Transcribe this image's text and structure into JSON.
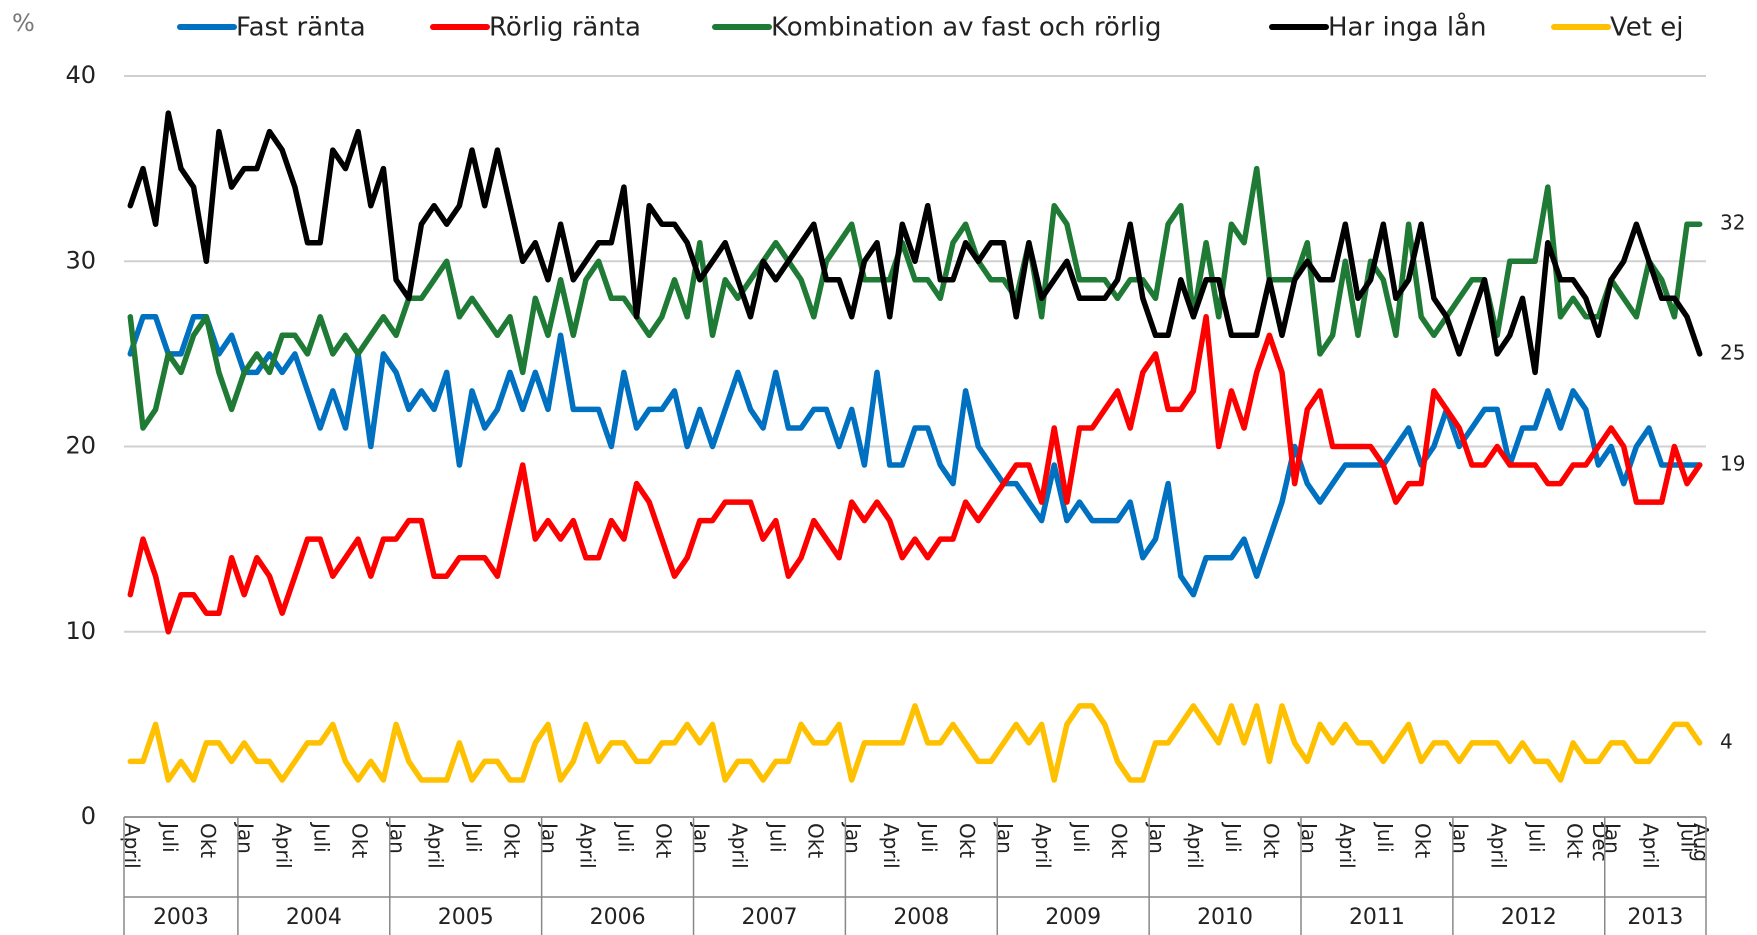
{
  "chart_data": {
    "type": "line",
    "y_unit_label": "%",
    "ylim": [
      0,
      40
    ],
    "yticks": [
      0,
      10,
      20,
      30,
      40
    ],
    "grid": true,
    "legend": "top",
    "categories": [
      "April",
      null,
      null,
      "Juli",
      null,
      null,
      "Okt",
      null,
      null,
      "Jan",
      null,
      null,
      "April",
      null,
      null,
      "Juli",
      null,
      null,
      "Okt",
      null,
      null,
      "Jan",
      null,
      null,
      "April",
      null,
      null,
      "Juli",
      null,
      null,
      "Okt",
      null,
      null,
      "Jan",
      null,
      null,
      "April",
      null,
      null,
      "Juli",
      null,
      null,
      "Okt",
      null,
      null,
      "Jan",
      null,
      null,
      "April",
      null,
      null,
      "Juli",
      null,
      null,
      "Okt",
      null,
      null,
      "Jan",
      null,
      null,
      "April",
      null,
      null,
      "Juli",
      null,
      null,
      "Okt",
      null,
      null,
      "Jan",
      null,
      null,
      "April",
      null,
      null,
      "Juli",
      null,
      null,
      "Okt",
      null,
      null,
      "Jan",
      null,
      null,
      "April",
      null,
      null,
      "Juli",
      null,
      null,
      "Okt",
      null,
      null,
      "Jan",
      null,
      null,
      "April",
      null,
      null,
      "Juli",
      null,
      null,
      "Okt",
      null,
      null,
      "Jan",
      null,
      null,
      "April",
      null,
      null,
      "Juli",
      null,
      null,
      "Okt",
      null,
      "Dec",
      "Jan",
      null,
      null,
      "April",
      null,
      null,
      "Juli",
      "Aug"
    ],
    "years": [
      "2003",
      "2004",
      "2005",
      "2006",
      "2007",
      "2008",
      "2009",
      "2010",
      "2011",
      "2012",
      "2013"
    ],
    "series": [
      {
        "name": "Fast ränta",
        "color": "#0070c0",
        "label_last": false,
        "values": [
          25,
          27,
          27,
          25,
          25,
          27,
          27,
          25,
          26,
          24,
          24,
          25,
          24,
          25,
          23,
          21,
          23,
          21,
          25,
          20,
          25,
          24,
          22,
          23,
          22,
          24,
          19,
          23,
          21,
          22,
          24,
          22,
          24,
          22,
          26,
          22,
          22,
          22,
          20,
          24,
          21,
          22,
          22,
          23,
          20,
          22,
          20,
          22,
          24,
          22,
          21,
          24,
          21,
          21,
          22,
          22,
          20,
          22,
          19,
          24,
          19,
          19,
          21,
          21,
          19,
          18,
          23,
          20,
          19,
          18,
          18,
          17,
          16,
          19,
          16,
          17,
          16,
          16,
          16,
          17,
          14,
          15,
          18,
          13,
          12,
          14,
          14,
          14,
          15,
          13,
          15,
          17,
          20,
          18,
          17,
          18,
          19,
          19,
          19,
          19,
          20,
          21,
          19,
          20,
          22,
          20,
          21,
          22,
          22,
          19,
          21,
          21,
          23,
          21,
          23,
          22,
          19,
          20,
          18,
          20,
          21,
          19,
          19,
          19,
          19
        ]
      },
      {
        "name": "Rörlig ränta",
        "color": "#ff0000",
        "label_last": true,
        "values": [
          12,
          15,
          13,
          10,
          12,
          12,
          11,
          11,
          14,
          12,
          14,
          13,
          11,
          13,
          15,
          15,
          13,
          14,
          15,
          13,
          15,
          15,
          16,
          16,
          13,
          13,
          14,
          14,
          14,
          13,
          16,
          19,
          15,
          16,
          15,
          16,
          14,
          14,
          16,
          15,
          18,
          17,
          15,
          13,
          14,
          16,
          16,
          17,
          17,
          17,
          15,
          16,
          13,
          14,
          16,
          15,
          14,
          17,
          16,
          17,
          16,
          14,
          15,
          14,
          15,
          15,
          17,
          16,
          17,
          18,
          19,
          19,
          17,
          21,
          17,
          21,
          21,
          22,
          23,
          21,
          24,
          25,
          22,
          22,
          23,
          27,
          20,
          23,
          21,
          24,
          26,
          24,
          18,
          22,
          23,
          20,
          20,
          20,
          20,
          19,
          17,
          18,
          18,
          23,
          22,
          21,
          19,
          19,
          20,
          19,
          19,
          19,
          18,
          18,
          19,
          19,
          20,
          21,
          20,
          17,
          17,
          17,
          20,
          18,
          19
        ]
      },
      {
        "name": "Kombination av fast och rörlig",
        "color": "#1f7a35",
        "label_last": true,
        "values": [
          27,
          21,
          22,
          25,
          24,
          26,
          27,
          24,
          22,
          24,
          25,
          24,
          26,
          26,
          25,
          27,
          25,
          26,
          25,
          26,
          27,
          26,
          28,
          28,
          29,
          30,
          27,
          28,
          27,
          26,
          27,
          24,
          28,
          26,
          29,
          26,
          29,
          30,
          28,
          28,
          27,
          26,
          27,
          29,
          27,
          31,
          26,
          29,
          28,
          29,
          30,
          31,
          30,
          29,
          27,
          30,
          31,
          32,
          29,
          29,
          29,
          31,
          29,
          29,
          28,
          31,
          32,
          30,
          29,
          29,
          28,
          31,
          27,
          33,
          32,
          29,
          29,
          29,
          28,
          29,
          29,
          28,
          32,
          33,
          27,
          31,
          27,
          32,
          31,
          35,
          29,
          29,
          29,
          31,
          25,
          26,
          30,
          26,
          30,
          29,
          26,
          32,
          27,
          26,
          27,
          28,
          29,
          29,
          26,
          30,
          30,
          30,
          34,
          27,
          28,
          27,
          27,
          29,
          28,
          27,
          30,
          29,
          27,
          32,
          32
        ]
      },
      {
        "name": "Har inga lån",
        "color": "#000000",
        "label_last": true,
        "values": [
          33,
          35,
          32,
          38,
          35,
          34,
          30,
          37,
          34,
          35,
          35,
          37,
          36,
          34,
          31,
          31,
          36,
          35,
          37,
          33,
          35,
          29,
          28,
          32,
          33,
          32,
          33,
          36,
          33,
          36,
          33,
          30,
          31,
          29,
          32,
          29,
          30,
          31,
          31,
          34,
          27,
          33,
          32,
          32,
          31,
          29,
          30,
          31,
          29,
          27,
          30,
          29,
          30,
          31,
          32,
          29,
          29,
          27,
          30,
          31,
          27,
          32,
          30,
          33,
          29,
          29,
          31,
          30,
          31,
          31,
          27,
          31,
          28,
          29,
          30,
          28,
          28,
          28,
          29,
          32,
          28,
          26,
          26,
          29,
          27,
          29,
          29,
          26,
          26,
          26,
          29,
          26,
          29,
          30,
          29,
          29,
          32,
          28,
          29,
          32,
          28,
          29,
          32,
          28,
          27,
          25,
          27,
          29,
          25,
          26,
          28,
          24,
          31,
          29,
          29,
          28,
          26,
          29,
          30,
          32,
          30,
          28,
          28,
          27,
          25
        ]
      },
      {
        "name": "Vet ej",
        "color": "#ffc000",
        "label_last": true,
        "values": [
          3,
          3,
          5,
          2,
          3,
          2,
          4,
          4,
          3,
          4,
          3,
          3,
          2,
          3,
          4,
          4,
          5,
          3,
          2,
          3,
          2,
          5,
          3,
          2,
          2,
          2,
          4,
          2,
          3,
          3,
          2,
          2,
          4,
          5,
          2,
          3,
          5,
          3,
          4,
          4,
          3,
          3,
          4,
          4,
          5,
          4,
          5,
          2,
          3,
          3,
          2,
          3,
          3,
          5,
          4,
          4,
          5,
          2,
          4,
          4,
          4,
          4,
          6,
          4,
          4,
          5,
          4,
          3,
          3,
          4,
          5,
          4,
          5,
          2,
          5,
          6,
          6,
          5,
          3,
          2,
          2,
          4,
          4,
          5,
          6,
          5,
          4,
          6,
          4,
          6,
          3,
          6,
          4,
          3,
          5,
          4,
          5,
          4,
          4,
          3,
          4,
          5,
          3,
          4,
          4,
          3,
          4,
          4,
          4,
          3,
          4,
          3,
          3,
          2,
          4,
          3,
          3,
          4,
          4,
          3,
          3,
          4,
          5,
          5,
          4
        ]
      }
    ]
  }
}
